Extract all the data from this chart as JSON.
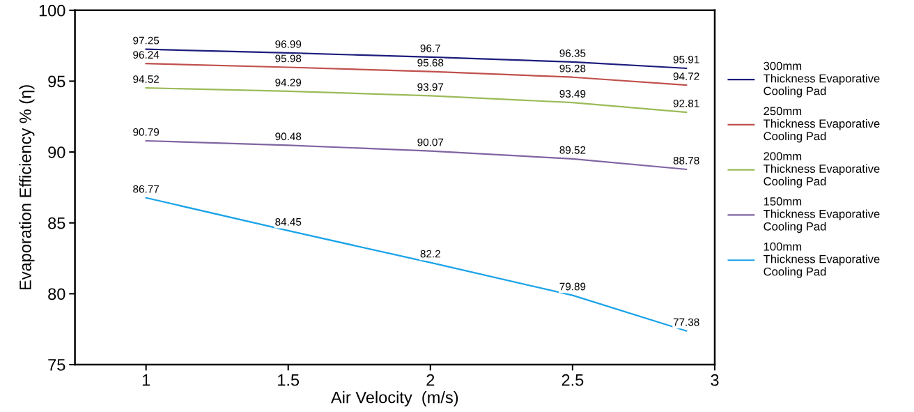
{
  "chart_data": {
    "type": "line",
    "xlabel": "Air Velocity  (m/s)",
    "ylabel": "Evaporation Efficiency % (η)",
    "x": [
      1,
      1.5,
      2,
      2.5,
      2.9
    ],
    "xlim": [
      0.75,
      3
    ],
    "xticks": [
      1,
      1.5,
      2,
      2.5,
      3
    ],
    "ylim": [
      75,
      100
    ],
    "yticks": [
      75,
      80,
      85,
      90,
      95,
      100
    ],
    "series": [
      {
        "name": "300mm\nThickness Evaporative\nCooling Pad",
        "color": "#1c1c7c",
        "values": [
          97.25,
          96.99,
          96.7,
          96.35,
          95.91
        ]
      },
      {
        "name": "250mm\nThickness Evaporative\nCooling Pad",
        "color": "#c0504d",
        "values": [
          96.24,
          95.98,
          95.68,
          95.28,
          94.72
        ]
      },
      {
        "name": "200mm\nThickness Evaporative\nCooling Pad",
        "color": "#9bbb59",
        "values": [
          94.52,
          94.29,
          93.97,
          93.49,
          92.81
        ]
      },
      {
        "name": "150mm\nThickness Evaporative\nCooling Pad",
        "color": "#8064a2",
        "values": [
          90.79,
          90.48,
          90.07,
          89.52,
          88.78
        ]
      },
      {
        "name": "100mm\nThickness Evaporative\nCooling Pad",
        "color": "#1aa3e8",
        "values": [
          86.77,
          84.45,
          82.2,
          79.89,
          77.38
        ]
      }
    ],
    "data_labels": true,
    "grid": false,
    "legend": "right",
    "marker": "none",
    "line_style": "solid"
  }
}
